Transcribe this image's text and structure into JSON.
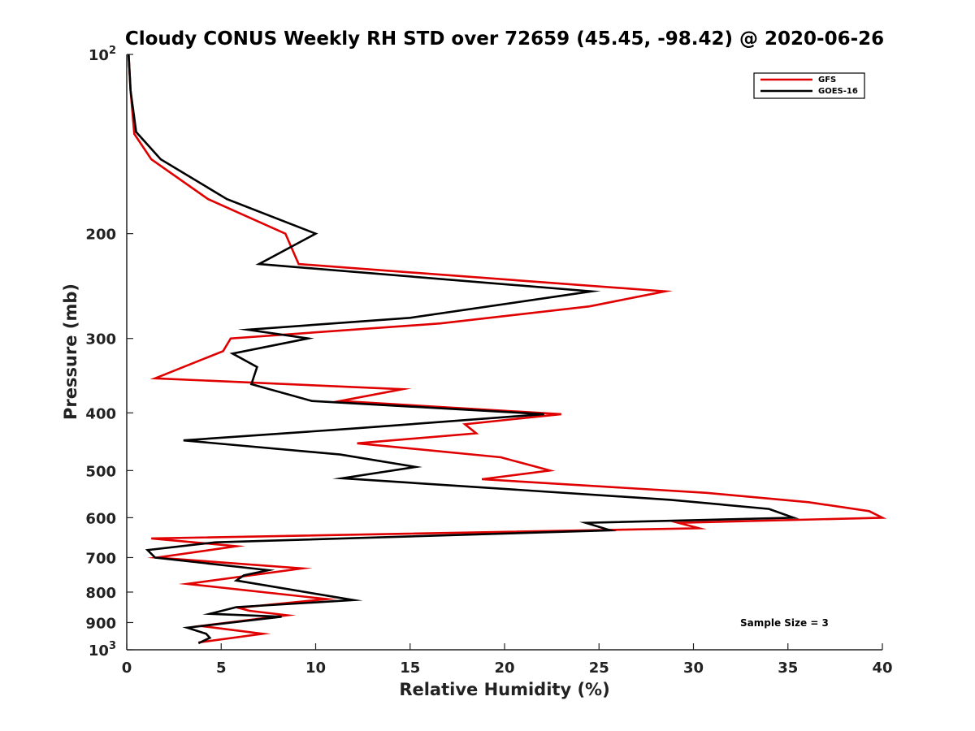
{
  "chart_data": {
    "type": "line",
    "title": "Cloudy CONUS Weekly RH STD over 72659 (45.45, -98.42) @ 2020-06-26",
    "xlabel": "Relative Humidity (%)",
    "ylabel": "Pressure (mb)",
    "xlim": [
      0,
      40
    ],
    "ylim": [
      100,
      1000
    ],
    "y_scale": "log",
    "y_reversed": true,
    "x_ticks": [
      "0",
      "5",
      "10",
      "15",
      "20",
      "25",
      "30",
      "35",
      "40"
    ],
    "y_ticks": [
      {
        "value": 100,
        "base": "10",
        "exp": "2"
      },
      {
        "value": 200,
        "label": "200"
      },
      {
        "value": 300,
        "label": "300"
      },
      {
        "value": 400,
        "label": "400"
      },
      {
        "value": 500,
        "label": "500"
      },
      {
        "value": 600,
        "label": "600"
      },
      {
        "value": 700,
        "label": "700"
      },
      {
        "value": 800,
        "label": "800"
      },
      {
        "value": 900,
        "label": "900"
      },
      {
        "value": 1000,
        "base": "10",
        "exp": "3"
      }
    ],
    "grid": false,
    "legend_position": "top-right",
    "series": [
      {
        "name": "GFS",
        "color": "#e00000",
        "points": [
          {
            "x": 0.1,
            "y": 100
          },
          {
            "x": 0.2,
            "y": 115
          },
          {
            "x": 0.4,
            "y": 136
          },
          {
            "x": 1.3,
            "y": 150
          },
          {
            "x": 4.3,
            "y": 175
          },
          {
            "x": 8.4,
            "y": 200
          },
          {
            "x": 9.1,
            "y": 225
          },
          {
            "x": 28.5,
            "y": 250
          },
          {
            "x": 24.5,
            "y": 265
          },
          {
            "x": 16.6,
            "y": 283
          },
          {
            "x": 5.5,
            "y": 300
          },
          {
            "x": 5.1,
            "y": 315
          },
          {
            "x": 1.5,
            "y": 350
          },
          {
            "x": 14.6,
            "y": 365
          },
          {
            "x": 11.3,
            "y": 382
          },
          {
            "x": 23.0,
            "y": 402
          },
          {
            "x": 17.9,
            "y": 418
          },
          {
            "x": 18.5,
            "y": 433
          },
          {
            "x": 12.2,
            "y": 450
          },
          {
            "x": 19.8,
            "y": 475
          },
          {
            "x": 22.4,
            "y": 500
          },
          {
            "x": 18.8,
            "y": 517
          },
          {
            "x": 30.7,
            "y": 545
          },
          {
            "x": 36.1,
            "y": 565
          },
          {
            "x": 39.3,
            "y": 585
          },
          {
            "x": 40.0,
            "y": 600
          },
          {
            "x": 29.2,
            "y": 612
          },
          {
            "x": 30.3,
            "y": 625
          },
          {
            "x": 1.3,
            "y": 650
          },
          {
            "x": 5.8,
            "y": 670
          },
          {
            "x": 1.6,
            "y": 700
          },
          {
            "x": 9.3,
            "y": 730
          },
          {
            "x": 3.2,
            "y": 775
          },
          {
            "x": 10.6,
            "y": 822
          },
          {
            "x": 5.9,
            "y": 850
          },
          {
            "x": 6.5,
            "y": 860
          },
          {
            "x": 8.5,
            "y": 875
          },
          {
            "x": 3.9,
            "y": 912
          },
          {
            "x": 7.2,
            "y": 940
          },
          {
            "x": 3.8,
            "y": 972
          }
        ]
      },
      {
        "name": "GOES-16",
        "color": "#000000",
        "points": [
          {
            "x": 0.1,
            "y": 100
          },
          {
            "x": 0.2,
            "y": 115
          },
          {
            "x": 0.5,
            "y": 135
          },
          {
            "x": 1.8,
            "y": 150
          },
          {
            "x": 5.3,
            "y": 175
          },
          {
            "x": 10.0,
            "y": 200
          },
          {
            "x": 7.0,
            "y": 225
          },
          {
            "x": 24.6,
            "y": 250
          },
          {
            "x": 15.0,
            "y": 277
          },
          {
            "x": 6.4,
            "y": 290
          },
          {
            "x": 9.6,
            "y": 300
          },
          {
            "x": 5.6,
            "y": 318
          },
          {
            "x": 6.9,
            "y": 335
          },
          {
            "x": 6.6,
            "y": 358
          },
          {
            "x": 9.8,
            "y": 382
          },
          {
            "x": 22.1,
            "y": 402
          },
          {
            "x": 12.0,
            "y": 425
          },
          {
            "x": 3.0,
            "y": 445
          },
          {
            "x": 11.3,
            "y": 470
          },
          {
            "x": 15.3,
            "y": 493
          },
          {
            "x": 11.4,
            "y": 515
          },
          {
            "x": 28.8,
            "y": 560
          },
          {
            "x": 34.0,
            "y": 580
          },
          {
            "x": 35.3,
            "y": 600
          },
          {
            "x": 24.3,
            "y": 612
          },
          {
            "x": 25.6,
            "y": 630
          },
          {
            "x": 4.7,
            "y": 660
          },
          {
            "x": 1.1,
            "y": 680
          },
          {
            "x": 1.5,
            "y": 700
          },
          {
            "x": 7.5,
            "y": 735
          },
          {
            "x": 6.2,
            "y": 750
          },
          {
            "x": 5.8,
            "y": 765
          },
          {
            "x": 12.0,
            "y": 825
          },
          {
            "x": 5.8,
            "y": 848
          },
          {
            "x": 4.4,
            "y": 870
          },
          {
            "x": 8.2,
            "y": 880
          },
          {
            "x": 3.2,
            "y": 918
          },
          {
            "x": 4.2,
            "y": 940
          },
          {
            "x": 4.4,
            "y": 955
          },
          {
            "x": 3.8,
            "y": 975
          }
        ]
      }
    ],
    "annotation": "Sample Size = 3"
  }
}
